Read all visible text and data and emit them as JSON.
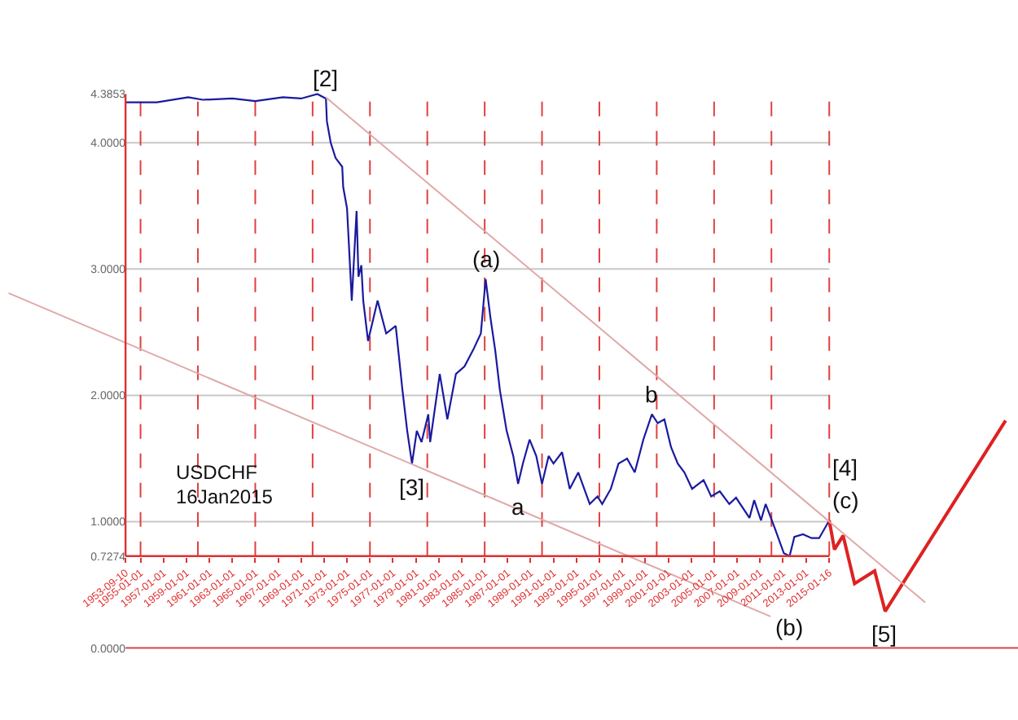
{
  "chart_data": {
    "type": "line",
    "series": [
      {
        "color": "#1a1aa0",
        "x": [
          "1953-09-10",
          "1956-06",
          "1959-03",
          "1960-06",
          "1963-01",
          "1965-01",
          "1967-06",
          "1969-01",
          "1970-06",
          "1971-03",
          "1971-04",
          "1971-08",
          "1972-01",
          "1972-08",
          "1972-09",
          "1973-01",
          "1973-03",
          "1973-06",
          "1973-11",
          "1974-01",
          "1974-04",
          "1974-06",
          "1974-11",
          "1975-09",
          "1976-06",
          "1977-04",
          "1977-11",
          "1978-04",
          "1978-09",
          "1979-02",
          "1979-07",
          "1980-02",
          "1980-04",
          "1981-02",
          "1981-10",
          "1982-07",
          "1983-04",
          "1984-01",
          "1984-09",
          "1985-02",
          "1985-07",
          "1985-12",
          "1986-05",
          "1986-12",
          "1987-07",
          "1987-12",
          "1988-05",
          "1988-12",
          "1989-07",
          "1990-01",
          "1990-08",
          "1991-01",
          "1991-10",
          "1992-06",
          "1993-03",
          "1994-03",
          "1994-11",
          "1995-04",
          "1996-01",
          "1996-09",
          "1997-06",
          "1998-02",
          "1998-11",
          "1999-08",
          "2000-02",
          "2000-09",
          "2001-04",
          "2001-11",
          "2002-06",
          "2003-02",
          "2004-02",
          "2004-10",
          "2005-07",
          "2006-05",
          "2006-12",
          "2008-02",
          "2008-07",
          "2009-02",
          "2009-07",
          "2010-05",
          "2011-02",
          "2011-08",
          "2012-01",
          "2012-10",
          "2013-07",
          "2014-03",
          "2015-01-16"
        ],
        "values": [
          4.32,
          4.32,
          4.36,
          4.34,
          4.35,
          4.33,
          4.36,
          4.35,
          4.3853,
          4.35,
          4.17,
          4.0,
          3.88,
          3.81,
          3.65,
          3.48,
          3.2,
          2.75,
          3.46,
          2.94,
          3.03,
          2.75,
          2.43,
          2.75,
          2.49,
          2.55,
          2.04,
          1.72,
          1.46,
          1.72,
          1.63,
          1.85,
          1.63,
          2.17,
          1.81,
          2.17,
          2.23,
          2.36,
          2.49,
          2.92,
          2.62,
          2.36,
          2.04,
          1.72,
          1.52,
          1.3,
          1.46,
          1.65,
          1.52,
          1.3,
          1.52,
          1.46,
          1.55,
          1.26,
          1.39,
          1.14,
          1.2,
          1.14,
          1.26,
          1.46,
          1.5,
          1.39,
          1.65,
          1.85,
          1.78,
          1.81,
          1.59,
          1.46,
          1.39,
          1.26,
          1.33,
          1.2,
          1.24,
          1.14,
          1.19,
          1.03,
          1.17,
          1.01,
          1.14,
          0.94,
          0.75,
          0.7274,
          0.88,
          0.9,
          0.87,
          0.87,
          1.01
        ]
      },
      {
        "color": "#dd2222",
        "x": [
          "2015-01-16",
          "2015-07",
          "2016-04",
          "2017-04",
          "2019-01",
          "2019-12",
          "2030-06"
        ],
        "values": [
          1.01,
          0.78,
          0.89,
          0.51,
          0.61,
          0.29,
          1.8
        ]
      },
      {
        "color": "#e0a8a8",
        "x": [
          "1971-03",
          "2023-06"
        ],
        "values": [
          4.36,
          0.36
        ]
      },
      {
        "color": "#e0a8a8",
        "x": [
          "1943-07",
          "2009-12"
        ],
        "values": [
          2.81,
          0.25
        ]
      }
    ],
    "xlim": [
      "1942-10",
      "2031-07"
    ],
    "ylim": [
      -0.57,
      5.13
    ],
    "xticks": [
      {
        "value": "1953-09-10",
        "label": "1953-09-10"
      },
      {
        "value": "1955-01-01",
        "label": "1955-01-01"
      },
      {
        "value": "1957-01-01",
        "label": "1957-01-01"
      },
      {
        "value": "1959-01-01",
        "label": "1959-01-01"
      },
      {
        "value": "1961-01-01",
        "label": "1961-01-01"
      },
      {
        "value": "1963-01-01",
        "label": "1963-01-01"
      },
      {
        "value": "1965-01-01",
        "label": "1965-01-01"
      },
      {
        "value": "1967-01-01",
        "label": "1967-01-01"
      },
      {
        "value": "1969-01-01",
        "label": "1969-01-01"
      },
      {
        "value": "1971-01-01",
        "label": "1971-01-01"
      },
      {
        "value": "1973-01-01",
        "label": "1973-01-01"
      },
      {
        "value": "1975-01-01",
        "label": "1975-01-01"
      },
      {
        "value": "1977-01-01",
        "label": "1977-01-01"
      },
      {
        "value": "1979-01-01",
        "label": "1979-01-01"
      },
      {
        "value": "1981-01-01",
        "label": "1981-01-01"
      },
      {
        "value": "1983-01-01",
        "label": "1983-01-01"
      },
      {
        "value": "1985-01-01",
        "label": "1985-01-01"
      },
      {
        "value": "1987-01-01",
        "label": "1987-01-01"
      },
      {
        "value": "1989-01-01",
        "label": "1989-01-01"
      },
      {
        "value": "1991-01-01",
        "label": "1991-01-01"
      },
      {
        "value": "1993-01-01",
        "label": "1993-01-01"
      },
      {
        "value": "1995-01-01",
        "label": "1995-01-01"
      },
      {
        "value": "1997-01-01",
        "label": "1997-01-01"
      },
      {
        "value": "1999-01-01",
        "label": "1999-01-01"
      },
      {
        "value": "2001-01-01",
        "label": "2001-01-01"
      },
      {
        "value": "2003-01-01",
        "label": "2003-01-01"
      },
      {
        "value": "2005-01-01",
        "label": "2005-01-01"
      },
      {
        "value": "2007-01-01",
        "label": "2007-01-01"
      },
      {
        "value": "2009-01-01",
        "label": "2009-01-01"
      },
      {
        "value": "2011-01-01",
        "label": "2011-01-01"
      },
      {
        "value": "2013-01-01",
        "label": "2013-01-01"
      },
      {
        "value": "2015-01-16",
        "label": "2015-01-16"
      }
    ],
    "yticks": [
      {
        "value": 4.3853,
        "label": "4.3853"
      },
      {
        "value": 4,
        "label": "4.0000"
      },
      {
        "value": 3,
        "label": "3.0000"
      },
      {
        "value": 2,
        "label": "2.0000"
      },
      {
        "value": 1,
        "label": "1.0000"
      },
      {
        "value": 0.7274,
        "label": "0.7274"
      },
      {
        "value": 0,
        "label": "0.0000"
      }
    ],
    "ref_lines": [
      {
        "axis": "y",
        "value": 4,
        "color": "#c8c8c8"
      },
      {
        "axis": "y",
        "value": 3,
        "color": "#c8c8c8"
      },
      {
        "axis": "y",
        "value": 2,
        "color": "#c8c8c8"
      },
      {
        "axis": "y",
        "value": 1,
        "color": "#c8c8c8"
      },
      {
        "axis": "y",
        "value": 0,
        "color": "#d04848"
      },
      {
        "axis": "x",
        "value": "1955-01-01",
        "color": "#e04040",
        "line_style": "dashed"
      },
      {
        "axis": "x",
        "value": "1960-01-01",
        "color": "#e04040",
        "line_style": "dashed"
      },
      {
        "axis": "x",
        "value": "1965-01-01",
        "color": "#e04040",
        "line_style": "dashed"
      },
      {
        "axis": "x",
        "value": "1970-01-01",
        "color": "#e04040",
        "line_style": "dashed"
      },
      {
        "axis": "x",
        "value": "1975-01-01",
        "color": "#e04040",
        "line_style": "dashed"
      },
      {
        "axis": "x",
        "value": "1980-01-01",
        "color": "#e04040",
        "line_style": "dashed"
      },
      {
        "axis": "x",
        "value": "1985-01-01",
        "color": "#e04040",
        "line_style": "dashed"
      },
      {
        "axis": "x",
        "value": "1990-01-01",
        "color": "#e04040",
        "line_style": "dashed"
      },
      {
        "axis": "x",
        "value": "1995-01-01",
        "color": "#e04040",
        "line_style": "dashed"
      },
      {
        "axis": "x",
        "value": "2000-01-01",
        "color": "#e04040",
        "line_style": "dashed"
      },
      {
        "axis": "x",
        "value": "2005-01-01",
        "color": "#e04040",
        "line_style": "dashed"
      },
      {
        "axis": "x",
        "value": "2010-01-01",
        "color": "#e04040",
        "line_style": "dashed"
      },
      {
        "axis": "x",
        "value": "2015-01-16",
        "color": "#e04040",
        "line_style": "dashed"
      }
    ],
    "annotations": [
      {
        "text": "[2]",
        "x": "1971-03",
        "y": 4.35
      },
      {
        "text": "(a)",
        "x": "1985-02",
        "y": 2.92
      },
      {
        "text": "[3]",
        "x": "1978-09",
        "y": 1.46
      },
      {
        "text": "a",
        "x": "1987-12",
        "y": 1.3
      },
      {
        "text": "b",
        "x": "1999-08",
        "y": 1.85
      },
      {
        "text": "[4]",
        "x": "2015-01-16",
        "y": 1.01
      },
      {
        "text": "(c)",
        "x": "2015-01-16",
        "y": 1.01
      },
      {
        "text": "(b)",
        "x": "2011-08",
        "y": 0.7274
      },
      {
        "text": "[5]",
        "x": "2019-12",
        "y": 0.29
      },
      "USDCHF",
      "16Jan2015"
    ],
    "line_style": "solid"
  }
}
